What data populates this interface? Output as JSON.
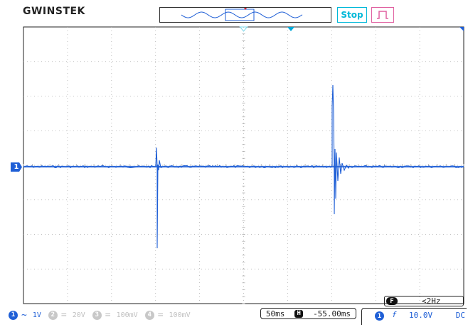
{
  "header": {
    "logo": "GWINSTEK",
    "run_state": "Stop"
  },
  "colors": {
    "trace": "#1f5fd6",
    "grid": "#b0b0b0",
    "stop": "#00b8d8",
    "trigger_icon": "#e060a0"
  },
  "channel_marker": "1",
  "freq_counter": {
    "icon": "F",
    "value": "<2Hz"
  },
  "status_bar": {
    "channels": [
      {
        "num": "1",
        "coupling_symbol": "~",
        "scale": "1V",
        "active": true
      },
      {
        "num": "2",
        "coupling_symbol": "=",
        "scale": "20V",
        "active": false
      },
      {
        "num": "3",
        "coupling_symbol": "=",
        "scale": "100mV",
        "active": false
      },
      {
        "num": "4",
        "coupling_symbol": "=",
        "scale": "100mV",
        "active": false
      }
    ],
    "timebase": "50ms",
    "h_icon": "H",
    "h_position": "-55.00ms",
    "trigger": {
      "source": "1",
      "edge": "f",
      "level": "10.0V",
      "coupling": "DC"
    }
  }
}
